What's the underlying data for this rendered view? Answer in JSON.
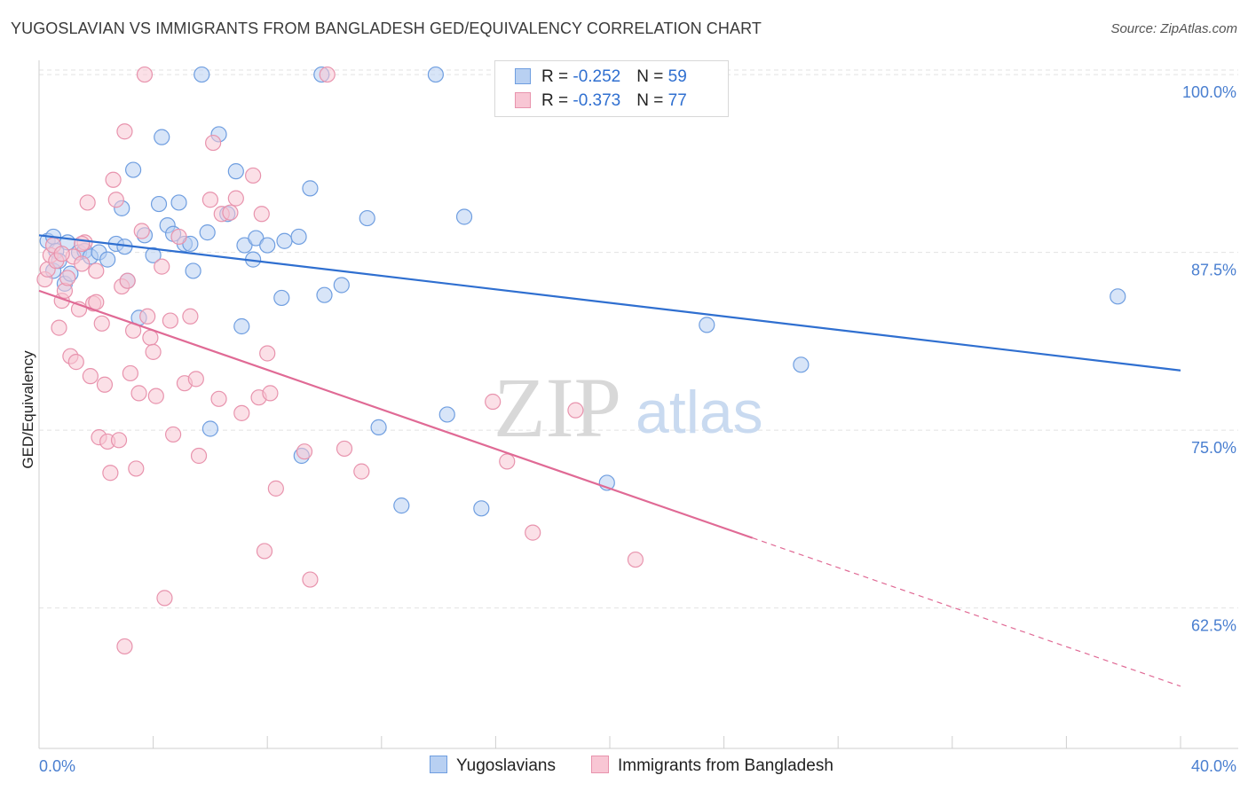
{
  "title": "YUGOSLAVIAN VS IMMIGRANTS FROM BANGLADESH GED/EQUIVALENCY CORRELATION CHART",
  "source": "Source: ZipAtlas.com",
  "watermark": {
    "zip": "ZIP",
    "atlas": "atlas"
  },
  "legend": {
    "rows": [
      {
        "r_label": "R = ",
        "r_value": "-0.252",
        "n_label": "N = ",
        "n_value": "59",
        "color_fill": "#b8d0f2",
        "color_stroke": "#6f9ee0"
      },
      {
        "r_label": "R = ",
        "r_value": "-0.373",
        "n_label": "N = ",
        "n_value": "77",
        "color_fill": "#f8c6d4",
        "color_stroke": "#e893ad"
      }
    ]
  },
  "bottom_legend": [
    {
      "label": "Yugoslavians",
      "color_fill": "#b8d0f2",
      "color_stroke": "#6f9ee0"
    },
    {
      "label": "Immigrants from Bangladesh",
      "color_fill": "#f8c6d4",
      "color_stroke": "#e893ad"
    }
  ],
  "chart_data": {
    "type": "scatter",
    "title": "YUGOSLAVIAN VS IMMIGRANTS FROM BANGLADESH GED/EQUIVALENCY CORRELATION CHART",
    "xlabel": "",
    "ylabel": "GED/Equivalency",
    "xlim": [
      0,
      40
    ],
    "ylim": [
      53.5,
      101.5
    ],
    "x_ticks": [
      0,
      4,
      8,
      12,
      16,
      20,
      24,
      28,
      32,
      36,
      40
    ],
    "x_tick_labels_shown": [
      "0.0%",
      "40.0%"
    ],
    "y_ticks": [
      62.5,
      75.0,
      87.5,
      100.0
    ],
    "y_tick_labels": [
      "62.5%",
      "75.0%",
      "87.5%",
      "100.0%"
    ],
    "grid": true,
    "legend_placement": "top-center",
    "series": [
      {
        "name": "Yugoslavians",
        "color": "#6f9ee0",
        "fill": "#b8d0f2",
        "trend": {
          "x": [
            0,
            40
          ],
          "y": [
            88.7,
            79.2
          ],
          "dashed_from": null,
          "color": "#2f6fd0"
        },
        "points": [
          [
            0.3,
            88.3
          ],
          [
            0.5,
            88.6
          ],
          [
            0.5,
            86.2
          ],
          [
            0.6,
            87.6
          ],
          [
            0.7,
            86.9
          ],
          [
            0.9,
            85.3
          ],
          [
            1.1,
            86.0
          ],
          [
            1.4,
            87.5
          ],
          [
            1.6,
            87.6
          ],
          [
            1.8,
            87.2
          ],
          [
            2.1,
            87.5
          ],
          [
            2.4,
            87.0
          ],
          [
            2.7,
            88.1
          ],
          [
            2.9,
            90.6
          ],
          [
            3.1,
            85.5
          ],
          [
            3.3,
            93.3
          ],
          [
            3.5,
            82.9
          ],
          [
            3.7,
            88.7
          ],
          [
            4.0,
            87.3
          ],
          [
            4.2,
            90.9
          ],
          [
            4.3,
            95.6
          ],
          [
            4.5,
            89.4
          ],
          [
            4.7,
            88.8
          ],
          [
            4.9,
            91.0
          ],
          [
            5.1,
            88.1
          ],
          [
            5.3,
            88.1
          ],
          [
            5.4,
            86.2
          ],
          [
            5.7,
            100.0
          ],
          [
            5.9,
            88.9
          ],
          [
            6.0,
            75.1
          ],
          [
            6.3,
            95.8
          ],
          [
            6.6,
            90.2
          ],
          [
            6.9,
            93.2
          ],
          [
            7.1,
            82.3
          ],
          [
            7.2,
            88.0
          ],
          [
            7.5,
            87.0
          ],
          [
            7.6,
            88.5
          ],
          [
            8.0,
            88.0
          ],
          [
            8.5,
            84.3
          ],
          [
            8.6,
            88.3
          ],
          [
            9.1,
            88.6
          ],
          [
            9.2,
            73.2
          ],
          [
            9.5,
            92.0
          ],
          [
            9.9,
            100.0
          ],
          [
            10.0,
            84.5
          ],
          [
            10.6,
            85.2
          ],
          [
            11.5,
            89.9
          ],
          [
            11.9,
            75.2
          ],
          [
            12.7,
            69.7
          ],
          [
            13.9,
            100.0
          ],
          [
            14.3,
            76.1
          ],
          [
            14.9,
            90.0
          ],
          [
            15.5,
            69.5
          ],
          [
            19.9,
            71.3
          ],
          [
            23.4,
            82.4
          ],
          [
            26.7,
            79.6
          ],
          [
            37.8,
            84.4
          ],
          [
            1.0,
            88.2
          ],
          [
            3.0,
            87.9
          ]
        ]
      },
      {
        "name": "Immigrants from Bangladesh",
        "color": "#e893ad",
        "fill": "#f8c6d4",
        "trend": {
          "x": [
            0,
            40
          ],
          "y": [
            84.8,
            57.0
          ],
          "dashed_from": 25.0,
          "color": "#e06a95"
        },
        "points": [
          [
            0.2,
            85.6
          ],
          [
            0.3,
            86.3
          ],
          [
            0.4,
            87.3
          ],
          [
            0.5,
            88.0
          ],
          [
            0.6,
            86.9
          ],
          [
            0.7,
            82.2
          ],
          [
            0.8,
            84.1
          ],
          [
            0.9,
            84.8
          ],
          [
            1.0,
            85.7
          ],
          [
            1.1,
            80.2
          ],
          [
            1.2,
            87.2
          ],
          [
            1.3,
            79.8
          ],
          [
            1.4,
            83.5
          ],
          [
            1.5,
            86.7
          ],
          [
            1.6,
            88.2
          ],
          [
            1.7,
            91.0
          ],
          [
            1.8,
            78.8
          ],
          [
            1.9,
            83.9
          ],
          [
            2.0,
            86.2
          ],
          [
            2.1,
            74.5
          ],
          [
            2.2,
            82.5
          ],
          [
            2.3,
            78.2
          ],
          [
            2.4,
            74.2
          ],
          [
            2.5,
            72.0
          ],
          [
            2.6,
            92.6
          ],
          [
            2.7,
            91.2
          ],
          [
            2.8,
            74.3
          ],
          [
            2.9,
            85.1
          ],
          [
            3.0,
            96.0
          ],
          [
            3.1,
            85.5
          ],
          [
            3.2,
            79.0
          ],
          [
            3.3,
            82.0
          ],
          [
            3.4,
            72.3
          ],
          [
            3.5,
            77.6
          ],
          [
            3.6,
            89.0
          ],
          [
            3.7,
            100.0
          ],
          [
            3.8,
            83.0
          ],
          [
            3.9,
            81.5
          ],
          [
            4.0,
            80.5
          ],
          [
            4.1,
            77.4
          ],
          [
            4.3,
            86.5
          ],
          [
            4.4,
            63.2
          ],
          [
            4.6,
            82.7
          ],
          [
            4.7,
            74.7
          ],
          [
            4.9,
            88.6
          ],
          [
            5.1,
            78.3
          ],
          [
            5.3,
            83.0
          ],
          [
            5.5,
            78.6
          ],
          [
            5.6,
            73.2
          ],
          [
            6.0,
            91.2
          ],
          [
            6.1,
            95.2
          ],
          [
            6.3,
            77.2
          ],
          [
            6.4,
            90.2
          ],
          [
            6.7,
            90.3
          ],
          [
            6.9,
            91.3
          ],
          [
            7.1,
            76.2
          ],
          [
            7.5,
            92.9
          ],
          [
            7.7,
            77.3
          ],
          [
            7.8,
            90.2
          ],
          [
            7.9,
            66.5
          ],
          [
            8.0,
            80.4
          ],
          [
            8.1,
            77.6
          ],
          [
            8.3,
            70.9
          ],
          [
            9.3,
            73.5
          ],
          [
            9.5,
            64.5
          ],
          [
            10.1,
            100.0
          ],
          [
            10.7,
            73.7
          ],
          [
            11.3,
            72.1
          ],
          [
            15.9,
            77.0
          ],
          [
            16.4,
            72.8
          ],
          [
            17.3,
            67.8
          ],
          [
            18.8,
            76.4
          ],
          [
            20.9,
            65.9
          ],
          [
            1.5,
            88.1
          ],
          [
            0.8,
            87.4
          ],
          [
            2.0,
            84.0
          ],
          [
            3.0,
            59.8
          ]
        ]
      }
    ]
  }
}
